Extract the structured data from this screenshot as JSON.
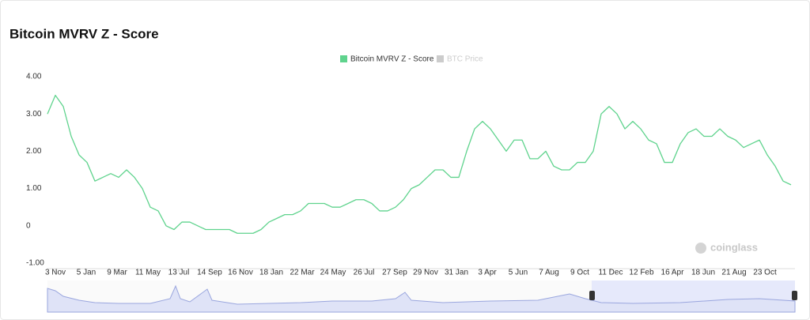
{
  "chart_data": {
    "type": "line",
    "title": "Bitcoin MVRV Z - Score",
    "watermark": "coinglass",
    "x": [
      0,
      1,
      2,
      3,
      4,
      5,
      6,
      7,
      8,
      9,
      10,
      11,
      12,
      13,
      14,
      15,
      16,
      17,
      18,
      19,
      20,
      21,
      22,
      23,
      24,
      25,
      26,
      27,
      28,
      29,
      30,
      31,
      32,
      33,
      34,
      35,
      36,
      37,
      38,
      39,
      40,
      41,
      42,
      43,
      44,
      45,
      46,
      47,
      48,
      49,
      50,
      51,
      52,
      53,
      54,
      55,
      56,
      57,
      58,
      59,
      60,
      61,
      62,
      63,
      64,
      65,
      66,
      67,
      68,
      69,
      70,
      71,
      72,
      73,
      74,
      75,
      76,
      77,
      78,
      79,
      80,
      81,
      82,
      83,
      84,
      85,
      86,
      87,
      88,
      89,
      90,
      91,
      92,
      93,
      94
    ],
    "series": [
      {
        "name": "Bitcoin MVRV Z - Score",
        "color": "#5fd38d",
        "values": [
          3.0,
          3.5,
          3.2,
          2.4,
          1.9,
          1.7,
          1.2,
          1.3,
          1.4,
          1.3,
          1.5,
          1.3,
          1.0,
          0.5,
          0.4,
          0.0,
          -0.1,
          0.1,
          0.1,
          0.0,
          -0.1,
          -0.1,
          -0.1,
          -0.1,
          -0.2,
          -0.2,
          -0.2,
          -0.1,
          0.1,
          0.2,
          0.3,
          0.3,
          0.4,
          0.6,
          0.6,
          0.6,
          0.5,
          0.5,
          0.6,
          0.7,
          0.7,
          0.6,
          0.4,
          0.4,
          0.5,
          0.7,
          1.0,
          1.1,
          1.3,
          1.5,
          1.5,
          1.3,
          1.3,
          2.0,
          2.6,
          2.8,
          2.6,
          2.3,
          2.0,
          2.3,
          2.3,
          1.8,
          1.8,
          2.0,
          1.6,
          1.5,
          1.5,
          1.7,
          1.7,
          2.0,
          3.0,
          3.2,
          3.0,
          2.6,
          2.8,
          2.6,
          2.3,
          2.2,
          1.7,
          1.7,
          2.2,
          2.5,
          2.6,
          2.4,
          2.4,
          2.6,
          2.4,
          2.3,
          2.1,
          2.2,
          2.3,
          1.9,
          1.6,
          1.2,
          1.1
        ]
      }
    ],
    "disabled_legend": {
      "name": "BTC Price",
      "color": "#cccccc"
    },
    "xlim": [
      0,
      94.5
    ],
    "xticks": [
      {
        "value": 1,
        "label": "3 Nov"
      },
      {
        "value": 4.9,
        "label": "5 Jan"
      },
      {
        "value": 8.8,
        "label": "9 Mar"
      },
      {
        "value": 12.7,
        "label": "11 May"
      },
      {
        "value": 16.6,
        "label": "13 Jul"
      },
      {
        "value": 20.5,
        "label": "14 Sep"
      },
      {
        "value": 24.4,
        "label": "16 Nov"
      },
      {
        "value": 28.3,
        "label": "18 Jan"
      },
      {
        "value": 32.2,
        "label": "22 Mar"
      },
      {
        "value": 36.1,
        "label": "24 May"
      },
      {
        "value": 40,
        "label": "26 Jul"
      },
      {
        "value": 43.9,
        "label": "27 Sep"
      },
      {
        "value": 47.8,
        "label": "29 Nov"
      },
      {
        "value": 51.7,
        "label": "31 Jan"
      },
      {
        "value": 55.6,
        "label": "3 Apr"
      },
      {
        "value": 59.5,
        "label": "5 Jun"
      },
      {
        "value": 63.4,
        "label": "7 Aug"
      },
      {
        "value": 67.3,
        "label": "9 Oct"
      },
      {
        "value": 71.2,
        "label": "11 Dec"
      },
      {
        "value": 75.1,
        "label": "12 Feb"
      },
      {
        "value": 79,
        "label": "16 Apr"
      },
      {
        "value": 82.9,
        "label": "18 Jun"
      },
      {
        "value": 86.8,
        "label": "21 Aug"
      },
      {
        "value": 90.7,
        "label": "23 Oct"
      }
    ],
    "ylim": [
      -1,
      4
    ],
    "yticks": [
      {
        "value": 4,
        "label": "4.00"
      },
      {
        "value": 3,
        "label": "3.00"
      },
      {
        "value": 2,
        "label": "2.00"
      },
      {
        "value": 1,
        "label": "1.00"
      },
      0,
      {
        "value": -1,
        "label": "-1.00"
      }
    ]
  }
}
